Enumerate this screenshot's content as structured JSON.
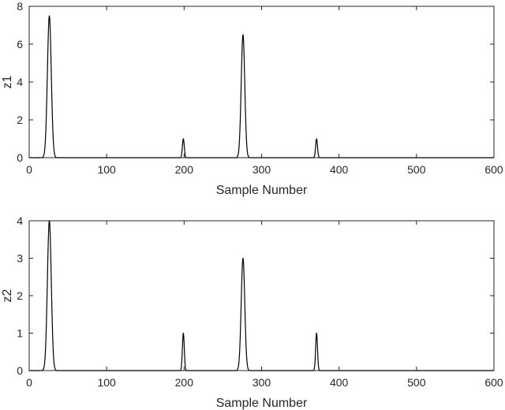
{
  "chart_data": [
    {
      "type": "line",
      "title": "",
      "xlabel": "Sample Number",
      "ylabel": "z1",
      "xlim": [
        0,
        600
      ],
      "ylim": [
        0,
        8
      ],
      "xticks": [
        0,
        100,
        200,
        300,
        400,
        500,
        600
      ],
      "yticks": [
        0,
        2,
        4,
        6,
        8
      ],
      "grid": false,
      "line_color": "#000000",
      "peaks": [
        {
          "x": 26,
          "y": 7.5,
          "width": 2.5
        },
        {
          "x": 199,
          "y": 1.0,
          "width": 1.2
        },
        {
          "x": 276,
          "y": 6.5,
          "width": 2.3
        },
        {
          "x": 371,
          "y": 1.0,
          "width": 1.2
        }
      ]
    },
    {
      "type": "line",
      "title": "",
      "xlabel": "Sample Number",
      "ylabel": "z2",
      "xlim": [
        0,
        600
      ],
      "ylim": [
        0,
        4
      ],
      "xticks": [
        0,
        100,
        200,
        300,
        400,
        500,
        600
      ],
      "yticks": [
        0,
        1,
        2,
        3,
        4
      ],
      "grid": false,
      "line_color": "#000000",
      "peaks": [
        {
          "x": 26,
          "y": 4.0,
          "width": 2.5
        },
        {
          "x": 199,
          "y": 1.0,
          "width": 1.2
        },
        {
          "x": 276,
          "y": 3.0,
          "width": 2.3
        },
        {
          "x": 371,
          "y": 1.0,
          "width": 1.2
        }
      ]
    }
  ]
}
